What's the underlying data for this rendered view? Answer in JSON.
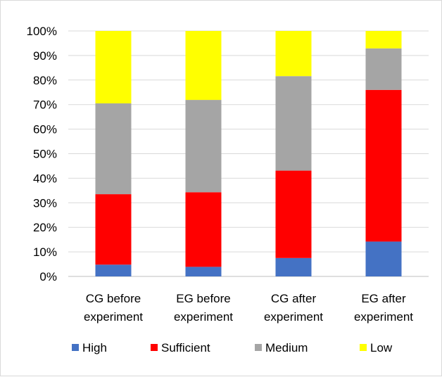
{
  "chart_data": {
    "type": "bar",
    "stacked": true,
    "percent": true,
    "categories": [
      [
        "CG before",
        "experiment"
      ],
      [
        "EG before",
        "experiment"
      ],
      [
        "CG after",
        "experiment"
      ],
      [
        "EG after",
        "experiment"
      ]
    ],
    "series": [
      {
        "name": "High",
        "color": "#4472C4",
        "values": [
          4.8,
          3.9,
          7.5,
          14.2
        ]
      },
      {
        "name": "Sufficient",
        "color": "#FF0000",
        "values": [
          28.7,
          30.4,
          35.6,
          61.8
        ]
      },
      {
        "name": "Medium",
        "color": "#A5A5A5",
        "values": [
          37.0,
          37.6,
          38.5,
          16.9
        ]
      },
      {
        "name": "Low",
        "color": "#FFFF00",
        "values": [
          29.5,
          28.1,
          18.4,
          7.1
        ]
      }
    ],
    "y_ticks": [
      "0%",
      "10%",
      "20%",
      "30%",
      "40%",
      "50%",
      "60%",
      "70%",
      "80%",
      "90%",
      "100%"
    ],
    "ylim": [
      0,
      100
    ],
    "grid": true,
    "legend_position": "bottom",
    "title": "",
    "xlabel": "",
    "ylabel": ""
  }
}
